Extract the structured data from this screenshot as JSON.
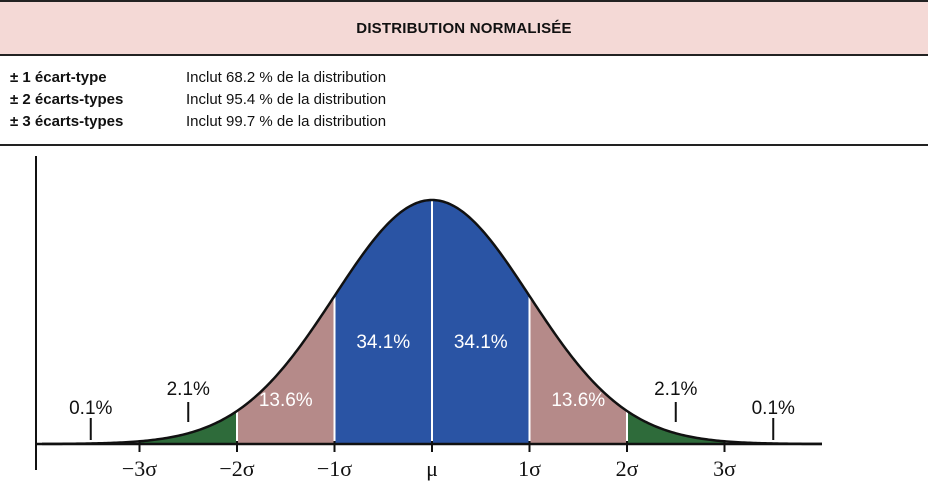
{
  "header": {
    "title": "DISTRIBUTION NORMALISÉE"
  },
  "legend": {
    "rows": [
      {
        "label": "± 1 écart-type",
        "text": "Inclut 68.2 % de la distribution"
      },
      {
        "label": "± 2 écarts-types",
        "text": "Inclut 95.4 % de la distribution"
      },
      {
        "label": "± 3 écarts-types",
        "text": "Inclut 99.7 % de la distribution"
      }
    ]
  },
  "colors": {
    "title_bg": "#f4d9d6",
    "band_1sd": "#2a54a4",
    "band_2sd": "#b58a89",
    "band_3sd": "#2e6b3a",
    "curve": "#111111"
  },
  "chart_data": {
    "type": "area",
    "title": "DISTRIBUTION NORMALISÉE",
    "xlabel": "",
    "ylabel": "",
    "xlim": [
      -4,
      4
    ],
    "x_ticks": [
      {
        "x": -3,
        "label": "−3σ"
      },
      {
        "x": -2,
        "label": "−2σ"
      },
      {
        "x": -1,
        "label": "−1σ"
      },
      {
        "x": 0,
        "label": "μ"
      },
      {
        "x": 1,
        "label": "1σ"
      },
      {
        "x": 2,
        "label": "2σ"
      },
      {
        "x": 3,
        "label": "3σ"
      }
    ],
    "bands": [
      {
        "from": -3,
        "to": -2,
        "percent": "2.1%",
        "color": "band_3sd",
        "label_outside": true,
        "pointer_x": -2.5
      },
      {
        "from": -2,
        "to": -1,
        "percent": "13.6%",
        "color": "band_2sd",
        "label_outside": false
      },
      {
        "from": -1,
        "to": 0,
        "percent": "34.1%",
        "color": "band_1sd",
        "label_outside": false
      },
      {
        "from": 0,
        "to": 1,
        "percent": "34.1%",
        "color": "band_1sd",
        "label_outside": false
      },
      {
        "from": 1,
        "to": 2,
        "percent": "13.6%",
        "color": "band_2sd",
        "label_outside": false
      },
      {
        "from": 2,
        "to": 3,
        "percent": "2.1%",
        "color": "band_3sd",
        "label_outside": true,
        "pointer_x": 2.5
      }
    ],
    "tails": [
      {
        "percent": "0.1%",
        "pointer_x": -3.5
      },
      {
        "percent": "0.1%",
        "pointer_x": 3.5
      }
    ]
  }
}
